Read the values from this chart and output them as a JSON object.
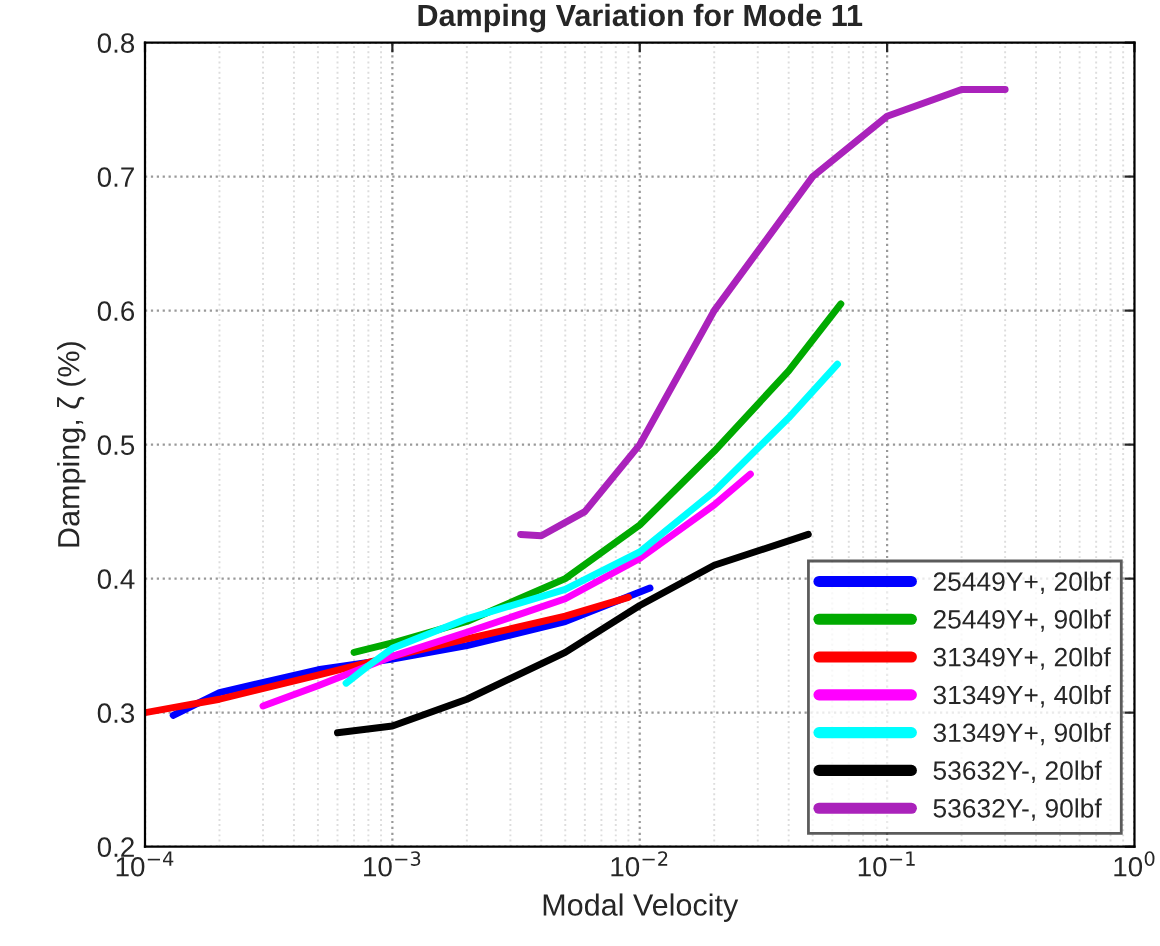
{
  "chart_data": {
    "type": "line",
    "title": "Damping Variation for Mode 11",
    "xlabel": "Modal Velocity",
    "ylabel": "Damping, ζ (%)",
    "log": "x",
    "grid": true,
    "legend": "bottom right",
    "line_style": "solid",
    "marker": "none",
    "xlim": [
      0.0001,
      1
    ],
    "ylim": [
      0.2,
      0.8
    ],
    "xticks": [
      {
        "value": 0.0001,
        "label": "10$^{−4}$"
      },
      {
        "value": 0.001,
        "label": "10$^{−3}$"
      },
      {
        "value": 0.01,
        "label": "10$^{−2}$"
      },
      {
        "value": 0.1,
        "label": "10$^{−1}$"
      },
      {
        "value": 1,
        "label": "10$^{0}$"
      }
    ],
    "yticks": [
      0.2,
      0.3,
      0.4,
      0.5,
      0.6,
      0.7,
      0.8
    ],
    "series": [
      {
        "name": "25449Y+, 20lbf",
        "color": "#0000ff",
        "x": [
          0.00013,
          0.0002,
          0.0005,
          0.001,
          0.002,
          0.005,
          0.011
        ],
        "values": [
          0.298,
          0.315,
          0.332,
          0.34,
          0.35,
          0.368,
          0.393
        ]
      },
      {
        "name": "25449Y+, 90lbf",
        "color": "#00aa00",
        "x": [
          0.0007,
          0.001,
          0.002,
          0.005,
          0.01,
          0.02,
          0.04,
          0.065
        ],
        "values": [
          0.345,
          0.352,
          0.368,
          0.4,
          0.44,
          0.495,
          0.555,
          0.605
        ]
      },
      {
        "name": "31349Y+, 20lbf",
        "color": "#ff0000",
        "x": [
          0.0001,
          0.0002,
          0.0005,
          0.001,
          0.002,
          0.005,
          0.009
        ],
        "values": [
          0.3,
          0.31,
          0.328,
          0.342,
          0.355,
          0.372,
          0.386
        ]
      },
      {
        "name": "31349Y+, 40lbf",
        "color": "#ff00ff",
        "x": [
          0.0003,
          0.0005,
          0.001,
          0.002,
          0.005,
          0.01,
          0.02,
          0.028
        ],
        "values": [
          0.305,
          0.32,
          0.342,
          0.36,
          0.385,
          0.415,
          0.455,
          0.478
        ]
      },
      {
        "name": "31349Y+, 90lbf",
        "color": "#00ffff",
        "x": [
          0.00065,
          0.0008,
          0.001,
          0.002,
          0.005,
          0.01,
          0.02,
          0.04,
          0.063
        ],
        "values": [
          0.322,
          0.335,
          0.348,
          0.37,
          0.392,
          0.42,
          0.465,
          0.52,
          0.56
        ]
      },
      {
        "name": "53632Y-, 20lbf",
        "color": "#000000",
        "x": [
          0.0006,
          0.001,
          0.002,
          0.005,
          0.01,
          0.02,
          0.048
        ],
        "values": [
          0.285,
          0.29,
          0.31,
          0.345,
          0.38,
          0.41,
          0.433
        ]
      },
      {
        "name": "53632Y-, 90lbf",
        "color": "#aa22bb",
        "x": [
          0.0033,
          0.004,
          0.006,
          0.01,
          0.02,
          0.05,
          0.1,
          0.2,
          0.3
        ],
        "values": [
          0.433,
          0.432,
          0.45,
          0.5,
          0.6,
          0.7,
          0.745,
          0.765,
          0.765
        ]
      }
    ]
  }
}
